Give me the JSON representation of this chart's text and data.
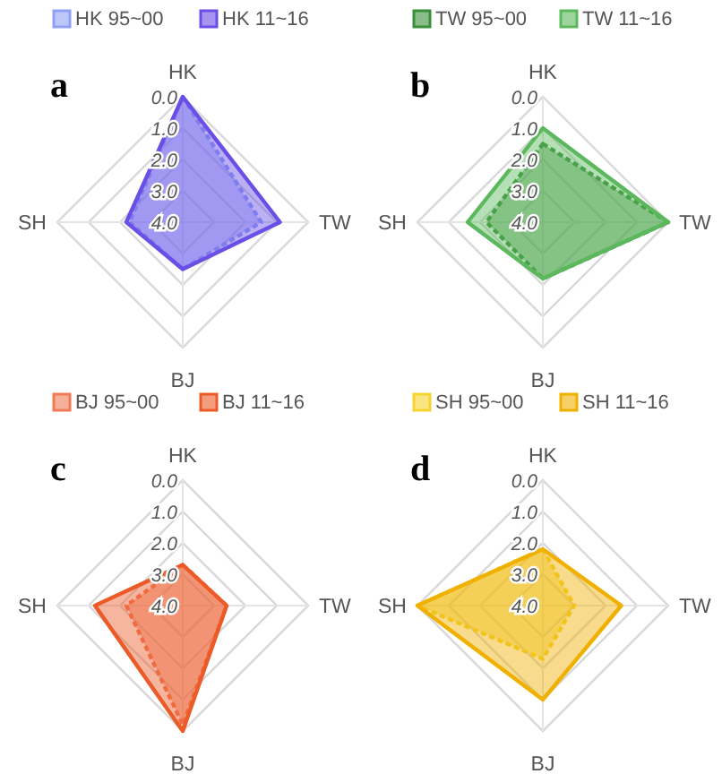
{
  "chart_data": [
    {
      "type": "radar",
      "annotations": [
        "a"
      ],
      "categories": [
        "HK",
        "TW",
        "BJ",
        "SH"
      ],
      "ylim": [
        4,
        0
      ],
      "yticks": [
        {
          "value": 0,
          "label": "0.0"
        },
        {
          "value": 1,
          "label": "1.0"
        },
        {
          "value": 2,
          "label": "2.0"
        },
        {
          "value": 3,
          "label": "3.0"
        },
        {
          "value": 4,
          "label": "4.0"
        }
      ],
      "grid": true,
      "legend": "top",
      "series": [
        {
          "name": "HK 95~00",
          "color": "#8fa0f5",
          "line_style": "dashed",
          "values": [
            0.0,
            1.5,
            2.5,
            2.3
          ]
        },
        {
          "name": "HK 11~16",
          "color": "#6a4fe6",
          "line_style": "solid",
          "values": [
            0.0,
            0.9,
            2.5,
            2.2
          ]
        }
      ]
    },
    {
      "type": "radar",
      "annotations": [
        "b"
      ],
      "categories": [
        "HK",
        "TW",
        "BJ",
        "SH"
      ],
      "ylim": [
        4,
        0
      ],
      "yticks": [
        {
          "value": 0,
          "label": "0.0"
        },
        {
          "value": 1,
          "label": "1.0"
        },
        {
          "value": 2,
          "label": "2.0"
        },
        {
          "value": 3,
          "label": "3.0"
        },
        {
          "value": 4,
          "label": "4.0"
        }
      ],
      "grid": true,
      "legend": "top",
      "series": [
        {
          "name": "TW 95~00",
          "color": "#3a8f3a",
          "line_style": "dashed",
          "values": [
            1.5,
            0.0,
            2.2,
            2.2
          ]
        },
        {
          "name": "TW 11~16",
          "color": "#5cb85c",
          "line_style": "solid",
          "values": [
            1.0,
            0.0,
            2.2,
            1.6
          ]
        }
      ]
    },
    {
      "type": "radar",
      "annotations": [
        "c"
      ],
      "categories": [
        "HK",
        "TW",
        "BJ",
        "SH"
      ],
      "ylim": [
        4,
        0
      ],
      "yticks": [
        {
          "value": 0,
          "label": "0.0"
        },
        {
          "value": 1,
          "label": "1.0"
        },
        {
          "value": 2,
          "label": "2.0"
        },
        {
          "value": 3,
          "label": "3.0"
        },
        {
          "value": 4,
          "label": "4.0"
        }
      ],
      "grid": true,
      "legend": "top",
      "series": [
        {
          "name": "BJ 95~00",
          "color": "#f07a55",
          "line_style": "dashed",
          "values": [
            2.7,
            2.6,
            0.2,
            2.2
          ]
        },
        {
          "name": "BJ 11~16",
          "color": "#ec5a28",
          "line_style": "solid",
          "values": [
            2.7,
            2.6,
            0.0,
            1.2
          ]
        }
      ]
    },
    {
      "type": "radar",
      "annotations": [
        "d"
      ],
      "categories": [
        "HK",
        "TW",
        "BJ",
        "SH"
      ],
      "ylim": [
        4,
        0
      ],
      "yticks": [
        {
          "value": 0,
          "label": "0.0"
        },
        {
          "value": 1,
          "label": "1.0"
        },
        {
          "value": 2,
          "label": "2.0"
        },
        {
          "value": 3,
          "label": "3.0"
        },
        {
          "value": 4,
          "label": "4.0"
        }
      ],
      "grid": true,
      "legend": "top",
      "series": [
        {
          "name": "SH 95~00",
          "color": "#f5d530",
          "line_style": "dashed",
          "values": [
            2.2,
            3.0,
            2.3,
            0.0
          ]
        },
        {
          "name": "SH 11~16",
          "color": "#f0b000",
          "line_style": "solid",
          "values": [
            2.2,
            1.5,
            1.0,
            0.0
          ]
        }
      ]
    }
  ]
}
